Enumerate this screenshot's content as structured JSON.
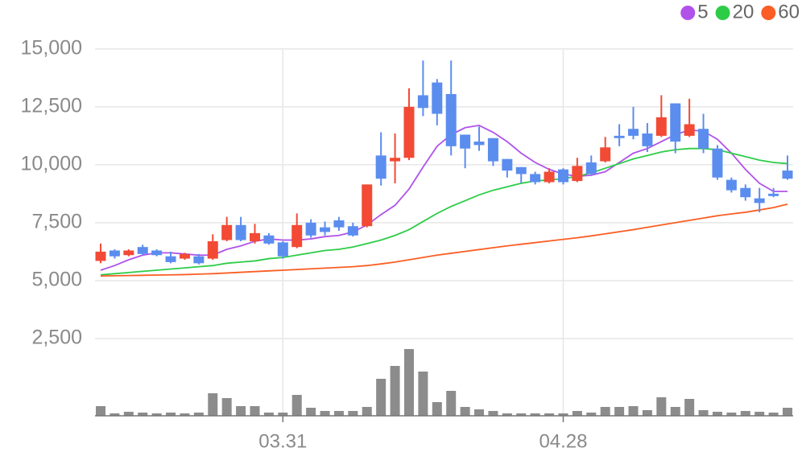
{
  "chart_data": {
    "type": "candlestick",
    "categories": [
      null,
      null,
      null,
      null,
      null,
      null,
      null,
      null,
      null,
      null,
      null,
      null,
      null,
      "03.31",
      null,
      null,
      null,
      null,
      null,
      null,
      null,
      null,
      null,
      null,
      null,
      null,
      null,
      null,
      null,
      null,
      null,
      null,
      null,
      "04.28",
      null,
      null,
      null,
      null,
      null,
      null,
      null,
      null,
      null,
      null,
      null,
      null,
      null,
      null,
      null,
      null
    ],
    "open": [
      5850,
      6300,
      6100,
      6450,
      6300,
      6050,
      5950,
      6050,
      5950,
      6750,
      7400,
      6700,
      6950,
      6650,
      6450,
      7500,
      7300,
      7600,
      7350,
      7350,
      10400,
      10150,
      10300,
      13000,
      13550,
      13050,
      11300,
      11000,
      11150,
      10250,
      9900,
      9600,
      9250,
      9800,
      9300,
      10100,
      10150,
      11250,
      11550,
      11350,
      11250,
      12650,
      11250,
      11550,
      10700,
      9350,
      9000,
      8550,
      8750,
      9750
    ],
    "high": [
      6600,
      6350,
      6350,
      6550,
      6350,
      6250,
      6200,
      6150,
      7000,
      7750,
      7750,
      7450,
      7050,
      6700,
      7900,
      7650,
      7550,
      7750,
      7500,
      9150,
      11400,
      11350,
      13300,
      14500,
      13700,
      14500,
      11300,
      11650,
      11150,
      10250,
      9900,
      9700,
      9850,
      9850,
      10300,
      10400,
      11200,
      11750,
      12500,
      11800,
      13000,
      12650,
      12850,
      12200,
      10850,
      9450,
      9150,
      9000,
      9000,
      10400
    ],
    "low": [
      5750,
      5950,
      6050,
      6100,
      6050,
      5750,
      5900,
      5700,
      5900,
      6700,
      6700,
      6600,
      6550,
      5950,
      6400,
      6850,
      6950,
      7150,
      6900,
      7300,
      9100,
      9200,
      10200,
      12100,
      11700,
      10400,
      9850,
      10600,
      9950,
      9450,
      9200,
      9150,
      9200,
      9150,
      9250,
      9550,
      10100,
      10800,
      11100,
      10550,
      11200,
      10500,
      11200,
      10500,
      9350,
      8800,
      8450,
      7950,
      8600,
      9350
    ],
    "close": [
      6250,
      6050,
      6300,
      6150,
      6100,
      5800,
      6150,
      5750,
      6700,
      7400,
      6750,
      7050,
      6600,
      6050,
      7400,
      6950,
      7100,
      7300,
      6950,
      9150,
      9400,
      10300,
      12500,
      12450,
      12200,
      10800,
      10700,
      10850,
      10150,
      9750,
      9600,
      9250,
      9700,
      9250,
      9950,
      9600,
      10750,
      11150,
      11250,
      10800,
      12050,
      11000,
      11750,
      10700,
      9450,
      8900,
      8600,
      8350,
      8650,
      9400
    ],
    "up_color": "#f24a35",
    "down_color": "#5b8def",
    "volume": [
      12,
      3,
      5,
      4,
      3,
      4,
      3,
      4,
      28,
      22,
      12,
      12,
      4,
      4,
      26,
      10,
      6,
      6,
      6,
      11,
      46,
      62,
      83,
      55,
      17,
      31,
      11,
      8,
      6,
      3,
      3,
      3,
      3,
      3,
      6,
      4,
      11,
      11,
      12,
      7,
      23,
      11,
      21,
      7,
      5,
      4,
      6,
      5,
      4,
      10
    ],
    "volume_color": "#8c8c8c",
    "vlim": [
      0,
      100
    ],
    "series": [
      {
        "name": "5",
        "color": "#b052ea",
        "values": [
          5450,
          5650,
          5900,
          6100,
          6200,
          6200,
          6150,
          6100,
          6100,
          6350,
          6500,
          6700,
          6800,
          6750,
          6750,
          6800,
          6900,
          6950,
          7100,
          7400,
          7850,
          8250,
          8950,
          9900,
          10800,
          11300,
          11600,
          11700,
          11400,
          11000,
          10500,
          10100,
          9800,
          9600,
          9500,
          9550,
          9700,
          10100,
          10500,
          10700,
          11000,
          11300,
          11500,
          11450,
          11100,
          10500,
          9800,
          9200,
          8850,
          8850
        ]
      },
      {
        "name": "20",
        "color": "#2dcc48",
        "values": [
          5250,
          5300,
          5350,
          5400,
          5450,
          5500,
          5550,
          5600,
          5650,
          5750,
          5800,
          5850,
          5950,
          6000,
          6100,
          6200,
          6300,
          6350,
          6450,
          6600,
          6750,
          6950,
          7200,
          7550,
          7900,
          8200,
          8450,
          8700,
          8900,
          9050,
          9200,
          9300,
          9350,
          9400,
          9500,
          9650,
          9850,
          10050,
          10250,
          10400,
          10550,
          10650,
          10700,
          10700,
          10650,
          10500,
          10350,
          10200,
          10100,
          10050
        ]
      },
      {
        "name": "60",
        "color": "#fa5e24",
        "values": [
          5200,
          5210,
          5220,
          5230,
          5240,
          5250,
          5260,
          5280,
          5300,
          5330,
          5360,
          5390,
          5420,
          5450,
          5480,
          5510,
          5540,
          5570,
          5600,
          5650,
          5720,
          5800,
          5900,
          6000,
          6100,
          6180,
          6260,
          6340,
          6420,
          6500,
          6570,
          6640,
          6710,
          6780,
          6850,
          6930,
          7020,
          7110,
          7200,
          7300,
          7400,
          7500,
          7600,
          7700,
          7800,
          7880,
          7950,
          8050,
          8150,
          8300
        ]
      }
    ],
    "ylim": [
      0,
      16000
    ],
    "yticks": [
      {
        "value": 2500,
        "label": "2,500"
      },
      {
        "value": 5000,
        "label": "5,000"
      },
      {
        "value": 7500,
        "label": "7,500"
      },
      {
        "value": 10000,
        "label": "10,000"
      },
      {
        "value": 12500,
        "label": "12,500"
      },
      {
        "value": 15000,
        "label": "15,000"
      }
    ],
    "grid": true,
    "legend": "top-right"
  }
}
